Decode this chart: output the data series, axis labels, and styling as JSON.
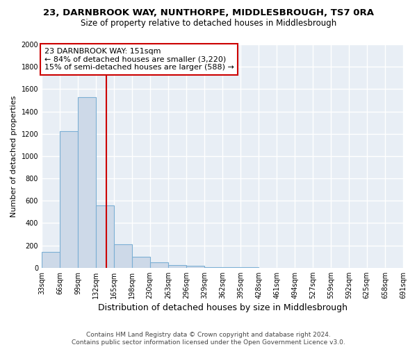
{
  "title": "23, DARNBROOK WAY, NUNTHORPE, MIDDLESBROUGH, TS7 0RA",
  "subtitle": "Size of property relative to detached houses in Middlesbrough",
  "xlabel": "Distribution of detached houses by size in Middlesbrough",
  "ylabel": "Number of detached properties",
  "bin_edges": [
    33,
    66,
    99,
    132,
    165,
    198,
    230,
    263,
    296,
    329,
    362,
    395,
    428,
    461,
    494,
    527,
    559,
    592,
    625,
    658,
    691
  ],
  "bar_heights": [
    140,
    1220,
    1530,
    560,
    210,
    95,
    50,
    25,
    15,
    5,
    3,
    2,
    1,
    1,
    1,
    0,
    0,
    0,
    0,
    0
  ],
  "bar_color": "#cdd9e8",
  "bar_edge_color": "#7bafd4",
  "property_size": 151,
  "vline_color": "#cc0000",
  "annotation_line1": "23 DARNBROOK WAY: 151sqm",
  "annotation_line2": "← 84% of detached houses are smaller (3,220)",
  "annotation_line3": "15% of semi-detached houses are larger (588) →",
  "annotation_box_color": "white",
  "annotation_box_edge_color": "#cc0000",
  "ylim": [
    0,
    2000
  ],
  "yticks": [
    0,
    200,
    400,
    600,
    800,
    1000,
    1200,
    1400,
    1600,
    1800,
    2000
  ],
  "tick_labels": [
    "33sqm",
    "66sqm",
    "99sqm",
    "132sqm",
    "165sqm",
    "198sqm",
    "230sqm",
    "263sqm",
    "296sqm",
    "329sqm",
    "362sqm",
    "395sqm",
    "428sqm",
    "461sqm",
    "494sqm",
    "527sqm",
    "559sqm",
    "592sqm",
    "625sqm",
    "658sqm",
    "691sqm"
  ],
  "footer_text": "Contains HM Land Registry data © Crown copyright and database right 2024.\nContains public sector information licensed under the Open Government Licence v3.0.",
  "bg_color": "#e8eef5",
  "grid_color": "white",
  "title_fontsize": 9.5,
  "subtitle_fontsize": 8.5,
  "ylabel_fontsize": 8,
  "xlabel_fontsize": 9,
  "footer_fontsize": 6.5,
  "tick_fontsize": 7,
  "annot_fontsize": 8
}
